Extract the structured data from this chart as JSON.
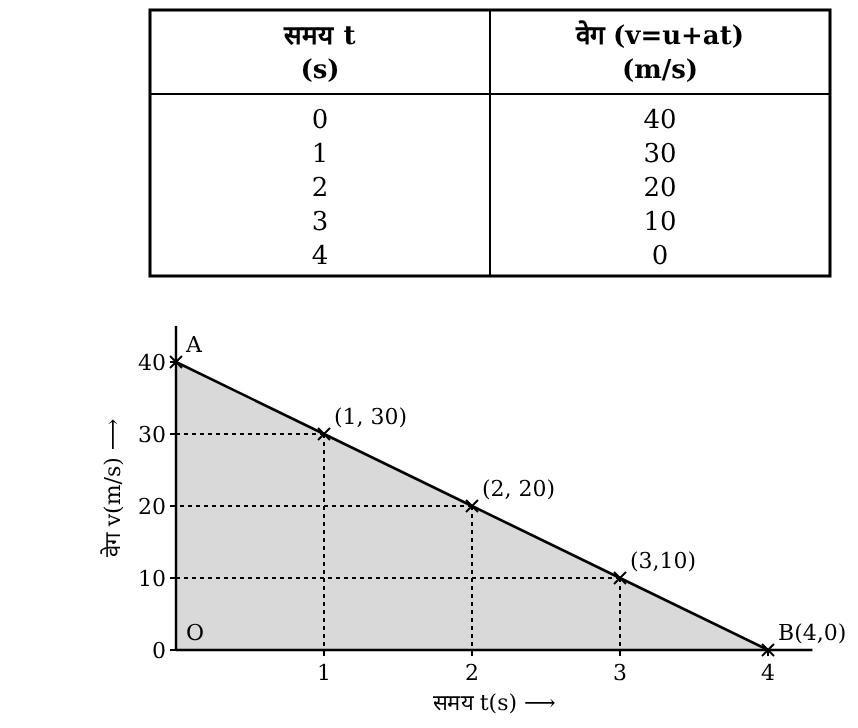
{
  "chart_data": {
    "type": "area",
    "x": [
      0,
      1,
      2,
      3,
      4
    ],
    "values": [
      40,
      30,
      20,
      10,
      0
    ],
    "color": "#d9d9d9",
    "xlim": [
      0,
      4.3
    ],
    "ylim": [
      0,
      45
    ],
    "xticks": [
      1,
      2,
      3,
      4
    ],
    "yticks": [
      0,
      10,
      20,
      30,
      40
    ],
    "xlabel": "समय t(s) ⟶",
    "ylabel": "वेग v(m/s) ⟶",
    "marker": "cross",
    "annotations": [
      "समय t (s)",
      "वेग (v=u+at) (m/s)",
      "0",
      "40",
      "1",
      "30",
      "2",
      "20",
      "3",
      "10",
      "4",
      "0",
      {
        "text": "A",
        "x": 0,
        "y": 40
      },
      {
        "text": "(1, 30)",
        "x": 1,
        "y": 30
      },
      {
        "text": "(2, 20)",
        "x": 2,
        "y": 20
      },
      {
        "text": "(3,10)",
        "x": 3,
        "y": 10
      },
      {
        "text": "B(4,0)",
        "x": 4,
        "y": 0
      },
      {
        "text": "O",
        "x": 0,
        "y": 0
      }
    ]
  }
}
